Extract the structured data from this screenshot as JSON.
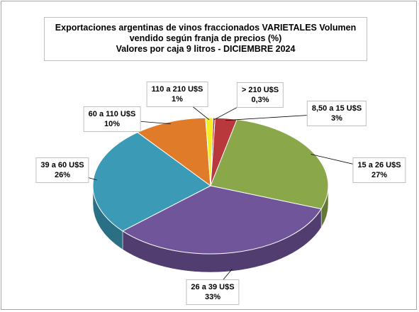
{
  "chart_data": {
    "type": "pie3d",
    "title": "Exportaciones argentinas de vinos fraccionados VARIETALES Volumen vendido según franja de precios (%)",
    "subtitle": "Valores por caja  9 litros -  DICIEMBRE 2024",
    "categories": [
      "> 210 U$S",
      "8,50 a 15 U$S",
      "15 a 26 U$S",
      "26 a 39 U$S",
      "39 a 60 U$S",
      "60 a 110 U$S",
      "110 a 210 U$S"
    ],
    "values": [
      0.3,
      3,
      27,
      33,
      26,
      10,
      1
    ],
    "value_labels": [
      "0,3%",
      "3%",
      "27%",
      "33%",
      "26%",
      "10%",
      "1%"
    ],
    "colors": [
      "#c0393b",
      "#b8383c",
      "#8aa84a",
      "#70559a",
      "#3b9ab6",
      "#e07b2a",
      "#f5ef1f"
    ]
  }
}
